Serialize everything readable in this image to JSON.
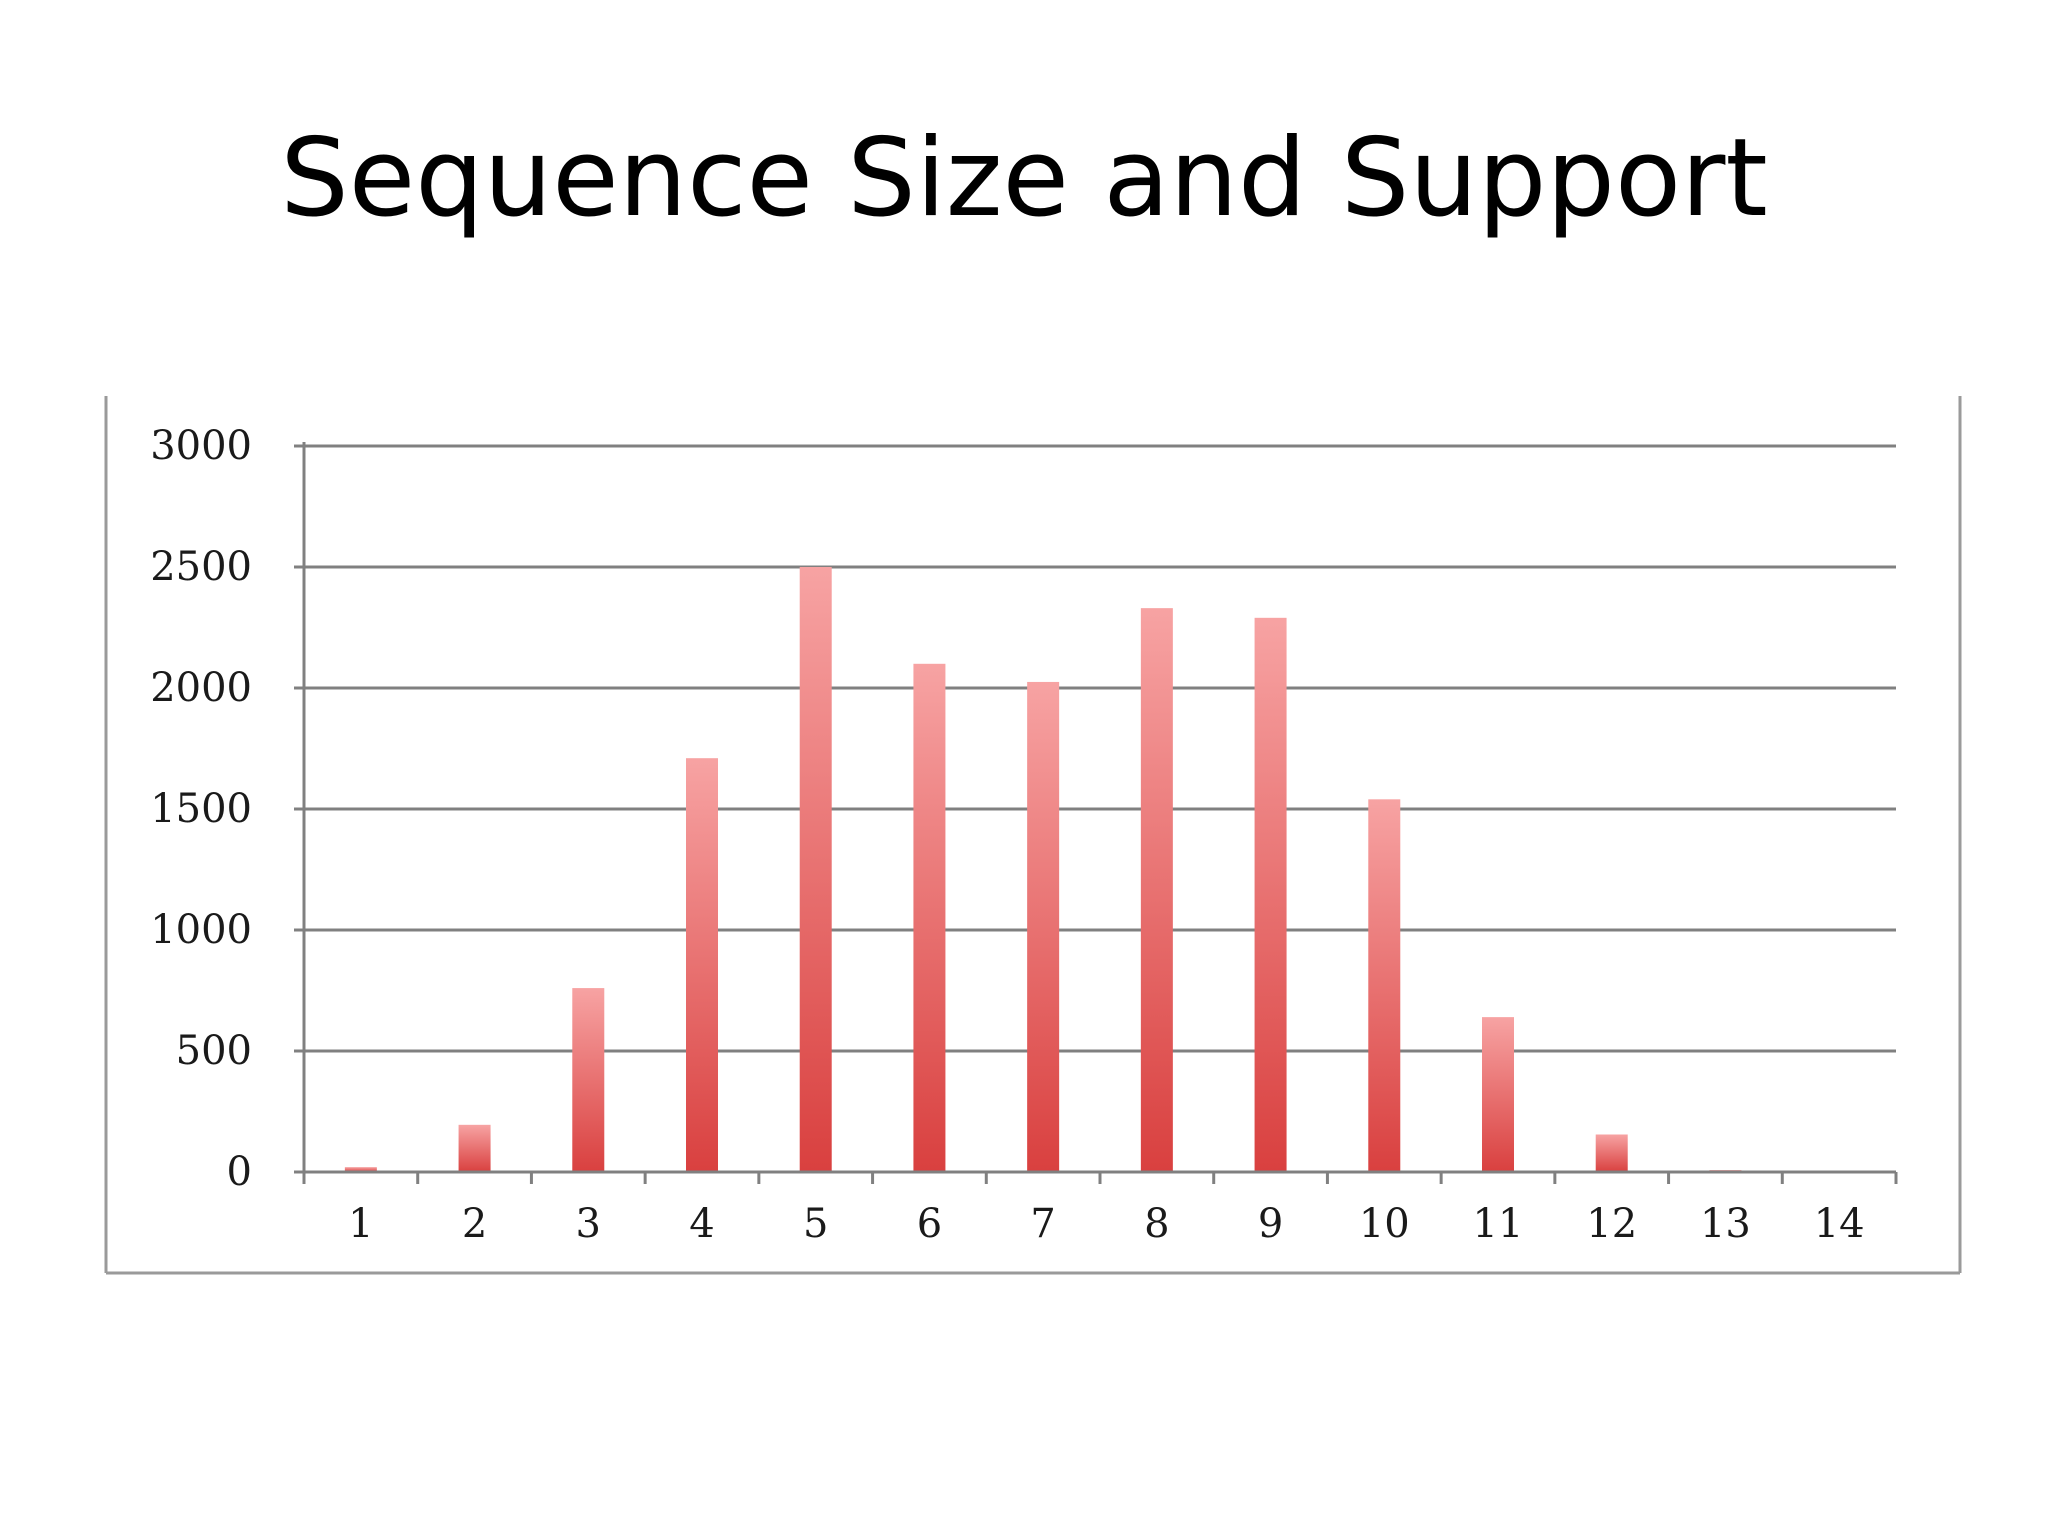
{
  "slide": {
    "title": "Sequence Size and Support"
  },
  "colors": {
    "bar_top": "#f7a3a3",
    "bar_bottom": "#d9403f",
    "grid": "#808080",
    "frame": "#9a9a9a",
    "text": "#1a1a1a"
  },
  "chart_data": {
    "type": "bar",
    "title": "Sequence Size and Support",
    "xlabel": "",
    "ylabel": "",
    "categories": [
      "1",
      "2",
      "3",
      "4",
      "5",
      "6",
      "7",
      "8",
      "9",
      "10",
      "11",
      "12",
      "13",
      "14"
    ],
    "values": [
      20,
      195,
      760,
      1710,
      2500,
      2100,
      2025,
      2330,
      2290,
      1540,
      640,
      155,
      8,
      5
    ],
    "ylim": [
      0,
      3000
    ],
    "yticks": [
      0,
      500,
      1000,
      1500,
      2000,
      2500,
      3000
    ],
    "grid": true,
    "legend": "none"
  }
}
